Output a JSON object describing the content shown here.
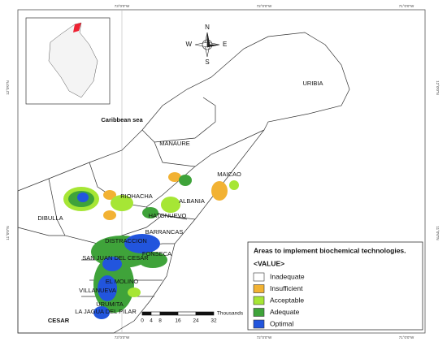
{
  "grid_labels": {
    "top": [
      "73°0'0\"W",
      "72°0'0\"W",
      "71°0'0\"W"
    ],
    "bottom": [
      "73°0'0\"W",
      "72°0'0\"W",
      "71°0'0\"W"
    ],
    "left": [
      "12°0'0\"N",
      "11°0'0\"N"
    ],
    "right": [
      "12°0'0\"N",
      "11°0'0\"N"
    ]
  },
  "compass": {
    "n": "N",
    "s": "S",
    "e": "E",
    "w": "W"
  },
  "sea_label": "Caribbean sea",
  "places": [
    "URIBIA",
    "MANAURE",
    "MAICAO",
    "RIOHACHA",
    "ALBANIA",
    "DIBULLA",
    "HATONUEVO",
    "BARRANCAS",
    "DISTRACCION",
    "FONSECA",
    "SAN JUAN DEL CESAR",
    "EL MOLINO",
    "VILLANUEVA",
    "URUMITA",
    "LA JAGUA DEL PILAR",
    "CESAR"
  ],
  "legend": {
    "title": "Areas to implement biochemical technologies.",
    "value_header": "<VALUE>",
    "items": [
      {
        "label": "Inadequate",
        "color": "#ffffff"
      },
      {
        "label": "Insufficient",
        "color": "#f2b233"
      },
      {
        "label": "Acceptable",
        "color": "#a6e635"
      },
      {
        "label": "Adequate",
        "color": "#3fa33a"
      },
      {
        "label": "Optimal",
        "color": "#2255dd"
      }
    ]
  },
  "scale_bar": {
    "ticks": [
      "0",
      "4",
      "8",
      "16",
      "24",
      "32"
    ],
    "unit": "Thousands"
  }
}
